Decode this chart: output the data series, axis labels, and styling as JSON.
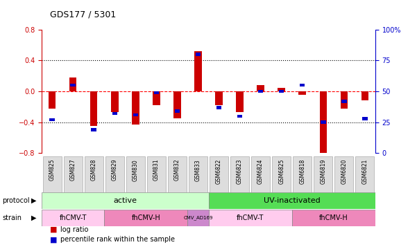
{
  "title": "GDS177 / 5301",
  "samples": [
    "GSM825",
    "GSM827",
    "GSM828",
    "GSM829",
    "GSM830",
    "GSM831",
    "GSM832",
    "GSM833",
    "GSM6822",
    "GSM6823",
    "GSM6824",
    "GSM6825",
    "GSM6818",
    "GSM6819",
    "GSM6820",
    "GSM6821"
  ],
  "log_ratio": [
    -0.22,
    0.18,
    -0.45,
    -0.27,
    -0.43,
    -0.18,
    -0.35,
    0.52,
    -0.18,
    -0.27,
    0.08,
    0.05,
    -0.04,
    -0.82,
    -0.22,
    -0.12
  ],
  "percentile": [
    27,
    55,
    19,
    32,
    31,
    49,
    34,
    80,
    37,
    30,
    50,
    50,
    55,
    25,
    42,
    28
  ],
  "ylim_left": [
    -0.8,
    0.8
  ],
  "ylim_right": [
    0,
    100
  ],
  "yticks_left": [
    -0.8,
    -0.4,
    0.0,
    0.4,
    0.8
  ],
  "yticks_right": [
    0,
    25,
    50,
    75,
    100
  ],
  "protocol_groups": [
    {
      "label": "active",
      "start": 0,
      "end": 8,
      "color": "#90EE90"
    },
    {
      "label": "UV-inactivated",
      "start": 8,
      "end": 16,
      "color": "#32CD32"
    }
  ],
  "strain_groups": [
    {
      "label": "fhCMV-T",
      "start": 0,
      "end": 3,
      "color": "#FFB6C1"
    },
    {
      "label": "fhCMV-H",
      "start": 3,
      "end": 7,
      "color": "#FF69B4"
    },
    {
      "label": "CMV_AD169",
      "start": 7,
      "end": 8,
      "color": "#DA70D6"
    },
    {
      "label": "fhCMV-T",
      "start": 8,
      "end": 12,
      "color": "#FFB6C1"
    },
    {
      "label": "fhCMV-H",
      "start": 12,
      "end": 16,
      "color": "#FF69B4"
    }
  ],
  "bar_color": "#CC0000",
  "dot_color": "#0000CC",
  "xlabel_color": "#555555",
  "left_axis_color": "#CC0000",
  "right_axis_color": "#0000CC",
  "protocol_label_color": "#555555",
  "strain_label_color": "#555555",
  "bg_color": "#FFFFFF",
  "grid_color": "#000000",
  "zero_line_color": "#FF0000",
  "protocol_light_green": "#B8FFB8",
  "protocol_dark_green": "#55DD55",
  "strain_light_pink": "#FFCCDD",
  "strain_dark_pink": "#EE88CC",
  "strain_purple": "#CC88CC"
}
